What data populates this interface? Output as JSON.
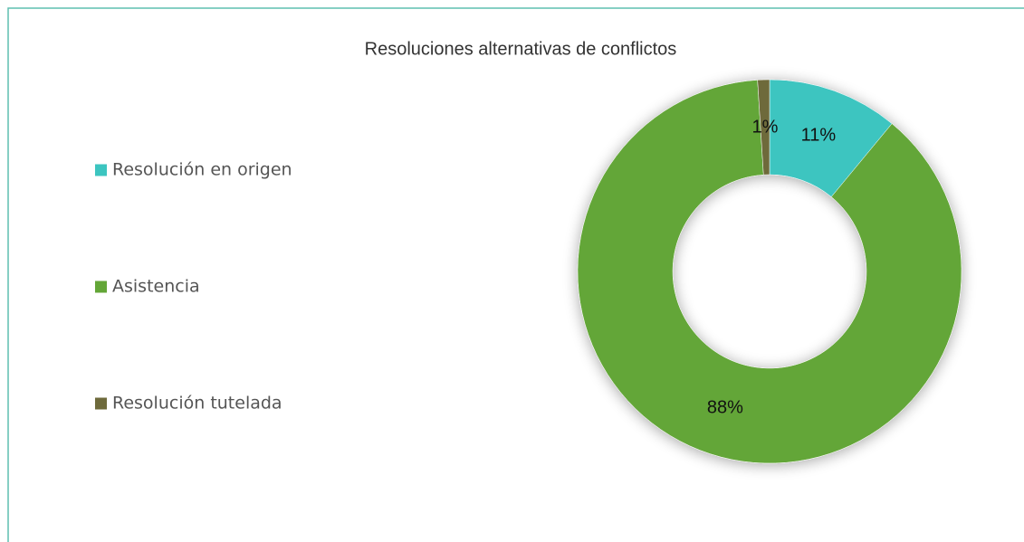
{
  "chart_data": {
    "type": "donut",
    "title": "Resoluciones alternativas de conflictos",
    "categories": [
      "Resolución en origen",
      "Asistencia",
      "Resolución tutelada"
    ],
    "values": [
      11,
      88,
      1
    ],
    "value_labels": [
      "11%",
      "88%",
      "1%"
    ],
    "colors": [
      "#3cc5c0",
      "#63a637",
      "#6e6a3b"
    ],
    "legend": "left"
  }
}
